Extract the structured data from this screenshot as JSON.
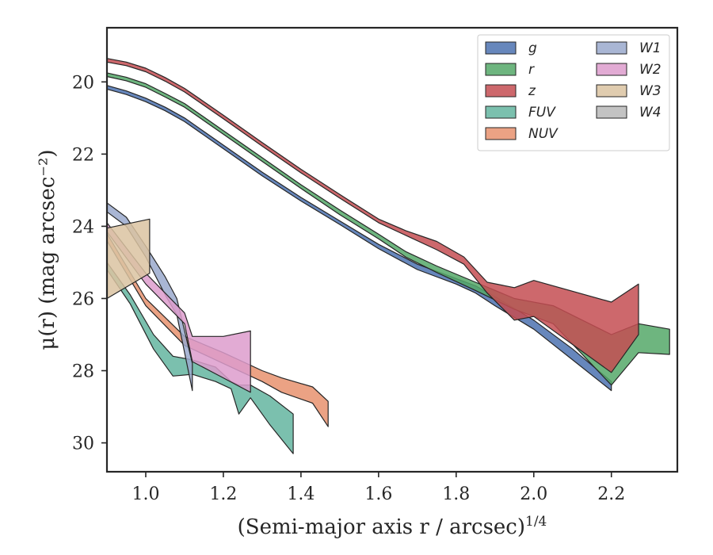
{
  "chart_data": {
    "type": "area",
    "xlabel": "(Semi-major axis r / arcsec)",
    "xlabel_sup": "1/4",
    "ylabel": "μ(r) (mag arcsec⁻²)",
    "xlim": [
      0.9,
      2.37
    ],
    "ylim": [
      30.8,
      18.5
    ],
    "y_inverted": true,
    "x_ticks": [
      1.0,
      1.2,
      1.4,
      1.6,
      1.8,
      2.0,
      2.2
    ],
    "x_tick_labels": [
      "1.0",
      "1.2",
      "1.4",
      "1.6",
      "1.8",
      "2.0",
      "2.2"
    ],
    "y_ticks": [
      20,
      22,
      24,
      26,
      28,
      30
    ],
    "y_tick_labels": [
      "20",
      "22",
      "24",
      "26",
      "28",
      "30"
    ],
    "grid": false,
    "legend_placement": "top-right",
    "legend_columns": 2,
    "series": [
      {
        "name": "g",
        "color": "#4c72b0",
        "x": [
          0.9,
          0.95,
          1.0,
          1.05,
          1.1,
          1.2,
          1.3,
          1.4,
          1.5,
          1.6,
          1.7,
          1.8,
          1.85,
          1.9,
          2.0,
          2.1,
          2.2
        ],
        "low": [
          20.1,
          20.25,
          20.45,
          20.7,
          21.0,
          21.75,
          22.5,
          23.2,
          23.85,
          24.5,
          25.05,
          25.45,
          25.65,
          25.95,
          26.6,
          27.4,
          28.3
        ],
        "high": [
          20.2,
          20.35,
          20.55,
          20.8,
          21.1,
          21.85,
          22.6,
          23.3,
          23.95,
          24.62,
          25.2,
          25.6,
          25.85,
          26.2,
          26.85,
          27.7,
          28.55
        ]
      },
      {
        "name": "r",
        "color": "#55a868",
        "x": [
          0.9,
          0.95,
          1.0,
          1.05,
          1.1,
          1.2,
          1.3,
          1.4,
          1.5,
          1.6,
          1.67,
          1.75,
          1.85,
          1.95,
          2.05,
          2.2,
          2.27,
          2.35
        ],
        "low": [
          19.75,
          19.87,
          20.05,
          20.32,
          20.6,
          21.35,
          22.1,
          22.85,
          23.55,
          24.22,
          24.7,
          25.1,
          25.55,
          26.0,
          26.2,
          27.0,
          26.7,
          26.85
        ],
        "high": [
          19.85,
          19.97,
          20.15,
          20.42,
          20.7,
          21.45,
          22.2,
          22.95,
          23.68,
          24.35,
          24.85,
          25.28,
          25.78,
          26.3,
          26.7,
          28.4,
          27.5,
          27.55
        ]
      },
      {
        "name": "z",
        "color": "#c44e52",
        "x": [
          0.9,
          0.95,
          1.0,
          1.05,
          1.1,
          1.2,
          1.3,
          1.4,
          1.5,
          1.6,
          1.67,
          1.75,
          1.82,
          1.88,
          1.95,
          2.0,
          2.2,
          2.27
        ],
        "low": [
          19.35,
          19.45,
          19.62,
          19.88,
          20.18,
          20.92,
          21.68,
          22.42,
          23.12,
          23.8,
          24.12,
          24.42,
          24.85,
          25.55,
          25.7,
          25.5,
          26.1,
          25.6
        ],
        "high": [
          19.45,
          19.55,
          19.72,
          19.98,
          20.28,
          21.02,
          21.78,
          22.52,
          23.22,
          23.9,
          24.25,
          24.65,
          25.05,
          25.85,
          26.6,
          26.5,
          28.05,
          27.0
        ]
      },
      {
        "name": "FUV",
        "color": "#64b5a0",
        "x": [
          0.9,
          0.96,
          1.02,
          1.07,
          1.12,
          1.18,
          1.22,
          1.24,
          1.27,
          1.32,
          1.38
        ],
        "low": [
          25.0,
          25.9,
          27.0,
          27.6,
          27.7,
          27.9,
          28.3,
          28.4,
          28.4,
          28.7,
          29.2
        ],
        "high": [
          25.2,
          26.15,
          27.4,
          28.15,
          28.1,
          28.3,
          28.5,
          29.2,
          28.75,
          29.5,
          30.3
        ]
      },
      {
        "name": "NUV",
        "color": "#e8926e",
        "x": [
          0.9,
          1.0,
          1.1,
          1.2,
          1.3,
          1.35,
          1.43,
          1.47
        ],
        "low": [
          24.2,
          26.0,
          27.05,
          27.5,
          28.0,
          28.2,
          28.45,
          28.85
        ],
        "high": [
          24.4,
          26.2,
          27.3,
          27.8,
          28.3,
          28.6,
          28.9,
          29.55
        ]
      },
      {
        "name": "W1",
        "color": "#9aa9cc",
        "x": [
          0.9,
          0.95,
          1.0,
          1.05,
          1.08,
          1.12
        ],
        "low": [
          23.35,
          23.75,
          24.55,
          25.4,
          26.0,
          27.8
        ],
        "high": [
          23.6,
          24.0,
          24.85,
          25.9,
          26.45,
          28.55
        ]
      },
      {
        "name": "W2",
        "color": "#dd9ccc",
        "x": [
          0.9,
          1.0,
          1.1,
          1.12,
          1.2,
          1.27
        ],
        "low": [
          23.9,
          25.3,
          26.4,
          27.05,
          27.05,
          26.9
        ],
        "high": [
          24.15,
          25.6,
          26.7,
          27.75,
          28.2,
          28.6
        ]
      },
      {
        "name": "W3",
        "color": "#dbc3a1",
        "x": [
          0.9,
          1.01
        ],
        "low": [
          24.05,
          23.8
        ],
        "high": [
          26.0,
          25.3
        ]
      },
      {
        "name": "W4",
        "color": "#b8b8b8",
        "x": [],
        "low": [],
        "high": []
      }
    ]
  }
}
